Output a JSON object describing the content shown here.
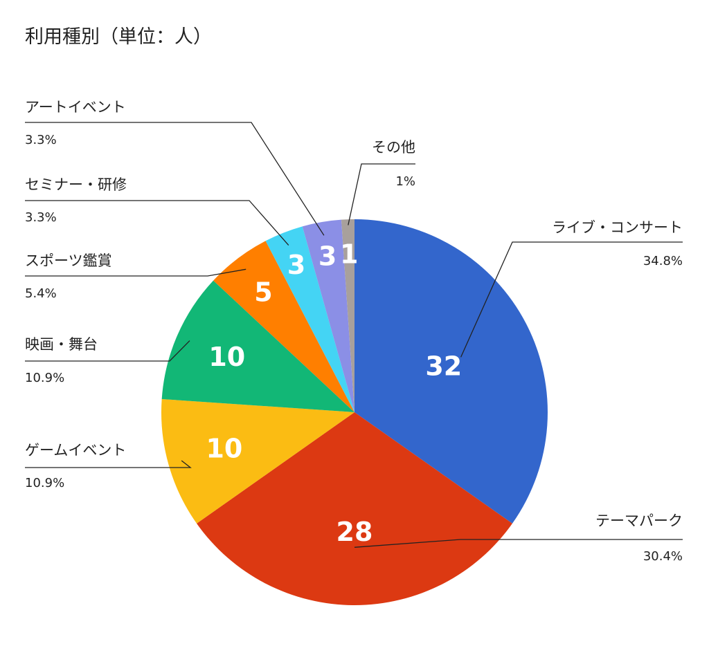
{
  "chart_data": {
    "type": "pie",
    "title": "利用種別（単位：人）",
    "categories": [
      "ライブ・コンサート",
      "テーマパーク",
      "ゲームイベント",
      "映画・舞台",
      "スポーツ鑑賞",
      "セミナー・研修",
      "アートイベント",
      "その他"
    ],
    "values": [
      32,
      28,
      10,
      10,
      5,
      3,
      3,
      1
    ],
    "percent_labels": [
      "34.8%",
      "30.4%",
      "10.9%",
      "10.9%",
      "5.4%",
      "3.3%",
      "3.3%",
      "1%"
    ],
    "colors": [
      "#3366cc",
      "#dc3912",
      "#fbbc13",
      "#12b776",
      "#ff7f00",
      "#44d4f4",
      "#8b8fe6",
      "#a8a09c"
    ],
    "start_angle_deg": 0,
    "direction": "clockwise",
    "legend": "callout labels"
  }
}
